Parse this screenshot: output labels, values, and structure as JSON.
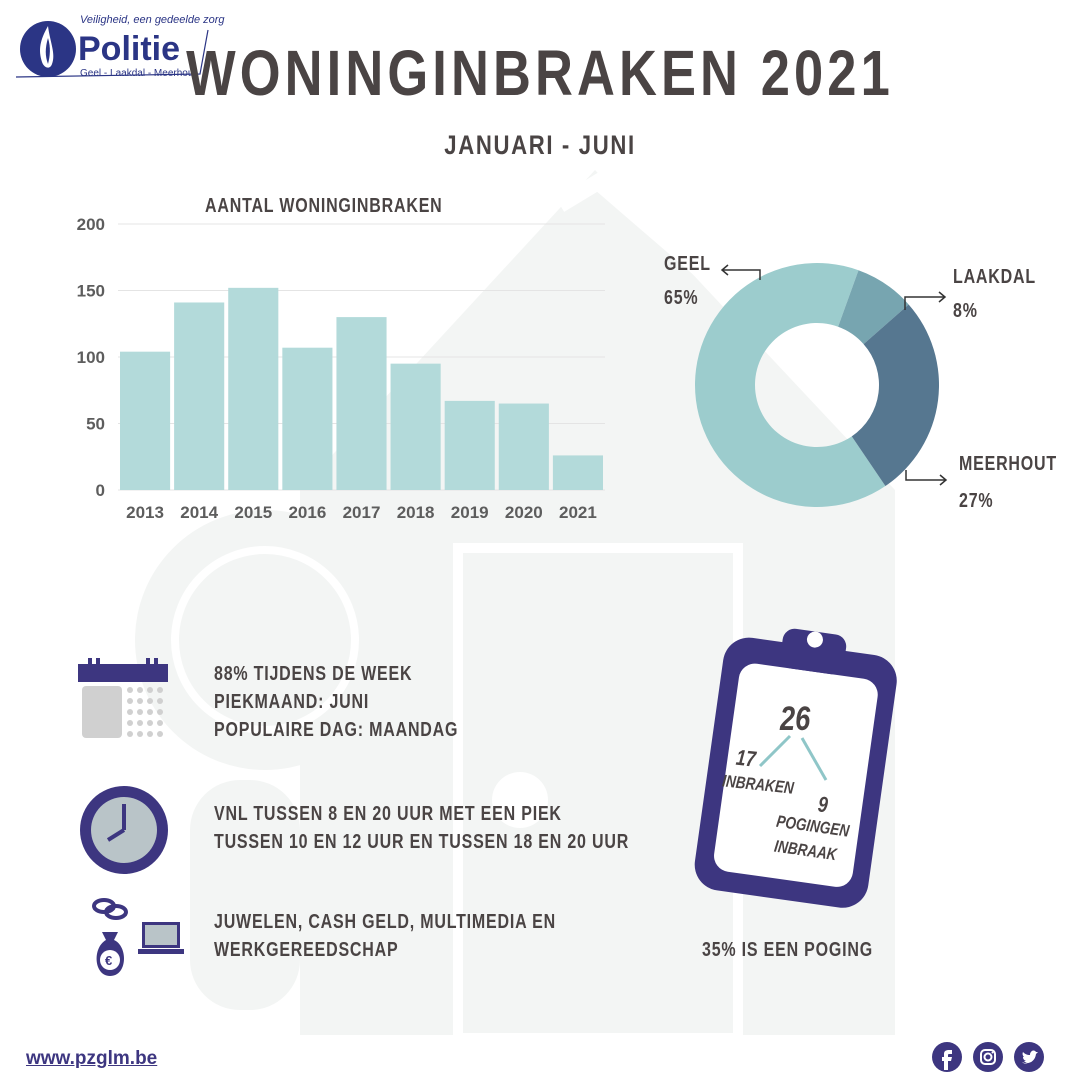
{
  "header": {
    "title": "WONINGINBRAKEN 2021",
    "subtitle": "JANUARI - JUNI"
  },
  "logo": {
    "tagline": "Veiligheid, een gedeelde zorg",
    "wordmark": "Politie",
    "region": "Geel - Laakdal - Meerhout",
    "icon": "police-flame-emblem-icon"
  },
  "chart_data": [
    {
      "type": "bar",
      "title": "AANTAL WONINGINBRAKEN",
      "categories": [
        "2013",
        "2014",
        "2015",
        "2016",
        "2017",
        "2018",
        "2019",
        "2020",
        "2021"
      ],
      "values": [
        104,
        141,
        152,
        107,
        130,
        95,
        67,
        65,
        26
      ],
      "ylim": [
        0,
        200
      ],
      "yticks": [
        0,
        50,
        100,
        150,
        200
      ],
      "grid": true,
      "bar_color": "#b3dada"
    },
    {
      "type": "pie",
      "donut": true,
      "slices": [
        {
          "label": "GEEL",
          "value": 65,
          "display": "65%",
          "color": "#9ccccd"
        },
        {
          "label": "LAAKDAL",
          "value": 8,
          "display": "8%",
          "color": "#77a5b0"
        },
        {
          "label": "MEERHOUT",
          "value": 27,
          "display": "27%",
          "color": "#567790"
        }
      ]
    }
  ],
  "facts": {
    "when": {
      "icon": "calendar-icon",
      "lines": [
        "88% TIJDENS DE WEEK",
        "PIEKMAAND: JUNI",
        "POPULAIRE DAG: MAANDAG"
      ]
    },
    "time": {
      "icon": "clock-icon",
      "lines": [
        "VNL TUSSEN 8 EN 20 UUR MET EEN PIEK",
        "TUSSEN 10 EN 12 UUR EN TUSSEN 18 EN 20 UUR"
      ]
    },
    "stolen": {
      "icon": "rings-money-laptop-icon",
      "lines": [
        "JUWELEN, CASH GELD, MULTIMEDIA EN",
        "WERKGEREEDSCHAP"
      ]
    }
  },
  "clipboard": {
    "icon": "clipboard-icon",
    "total": "26",
    "burglaries_count": "17",
    "burglaries_label": "INBRAKEN",
    "attempts_count": "9",
    "attempts_label_1": "POGINGEN",
    "attempts_label_2": "INBRAAK",
    "caption": "35% IS EEN POGING"
  },
  "footer": {
    "website": "www.pzglm.be",
    "social": [
      "facebook-icon",
      "instagram-icon",
      "twitter-icon"
    ]
  },
  "colors": {
    "text": "#4a4444",
    "accent": "#3d3680",
    "bar": "#b3dada",
    "house_bg": "#f3f5f4"
  }
}
